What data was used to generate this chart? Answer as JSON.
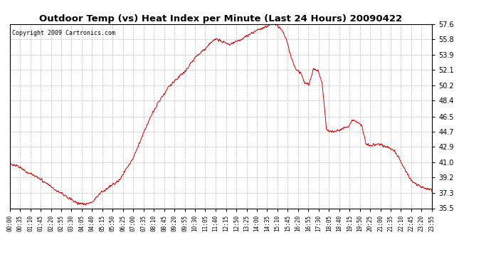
{
  "title": "Outdoor Temp (vs) Heat Index per Minute (Last 24 Hours) 20090422",
  "copyright": "Copyright 2009 Cartronics.com",
  "line_color": "#cc0000",
  "background_color": "#ffffff",
  "plot_bg_color": "#ffffff",
  "grid_color": "#aaaaaa",
  "yticks": [
    35.5,
    37.3,
    39.2,
    41.0,
    42.9,
    44.7,
    46.5,
    48.4,
    50.2,
    52.1,
    53.9,
    55.8,
    57.6
  ],
  "ylim": [
    35.5,
    57.6
  ],
  "xtick_labels": [
    "00:00",
    "00:35",
    "01:10",
    "01:45",
    "02:20",
    "02:55",
    "03:30",
    "04:05",
    "04:40",
    "05:15",
    "05:50",
    "06:25",
    "07:00",
    "07:35",
    "08:10",
    "08:45",
    "09:20",
    "09:55",
    "10:30",
    "11:05",
    "11:40",
    "12:15",
    "12:50",
    "13:25",
    "14:00",
    "14:35",
    "15:10",
    "15:45",
    "16:20",
    "16:55",
    "17:30",
    "18:05",
    "18:40",
    "19:15",
    "19:50",
    "20:25",
    "21:00",
    "21:35",
    "22:10",
    "22:45",
    "23:20",
    "23:55"
  ],
  "curve_keypoints": [
    [
      0.0,
      40.8
    ],
    [
      0.5,
      40.5
    ],
    [
      1.0,
      39.8
    ],
    [
      1.5,
      39.3
    ],
    [
      2.0,
      38.6
    ],
    [
      2.5,
      37.8
    ],
    [
      3.0,
      37.2
    ],
    [
      3.5,
      36.5
    ],
    [
      3.75,
      36.2
    ],
    [
      4.0,
      36.1
    ],
    [
      4.25,
      36.0
    ],
    [
      4.5,
      36.1
    ],
    [
      4.75,
      36.4
    ],
    [
      5.0,
      37.0
    ],
    [
      5.25,
      37.5
    ],
    [
      5.5,
      37.8
    ],
    [
      5.75,
      38.2
    ],
    [
      6.0,
      38.5
    ],
    [
      6.25,
      39.0
    ],
    [
      6.5,
      39.8
    ],
    [
      7.0,
      41.5
    ],
    [
      7.5,
      44.0
    ],
    [
      8.0,
      46.5
    ],
    [
      8.5,
      48.4
    ],
    [
      9.0,
      50.0
    ],
    [
      9.5,
      51.0
    ],
    [
      10.0,
      52.0
    ],
    [
      10.5,
      53.5
    ],
    [
      11.0,
      54.5
    ],
    [
      11.25,
      55.0
    ],
    [
      11.5,
      55.5
    ],
    [
      11.75,
      55.8
    ],
    [
      12.0,
      55.6
    ],
    [
      12.25,
      55.3
    ],
    [
      12.5,
      55.1
    ],
    [
      12.75,
      55.4
    ],
    [
      13.0,
      55.6
    ],
    [
      13.25,
      55.9
    ],
    [
      13.5,
      56.2
    ],
    [
      13.75,
      56.5
    ],
    [
      14.0,
      56.8
    ],
    [
      14.25,
      57.0
    ],
    [
      14.5,
      57.2
    ],
    [
      14.75,
      57.5
    ],
    [
      15.0,
      57.6
    ],
    [
      15.25,
      57.4
    ],
    [
      15.5,
      56.8
    ],
    [
      15.75,
      55.5
    ],
    [
      16.0,
      53.5
    ],
    [
      16.25,
      52.2
    ],
    [
      16.5,
      51.8
    ],
    [
      16.6,
      51.5
    ],
    [
      16.75,
      50.5
    ],
    [
      17.0,
      50.3
    ],
    [
      17.25,
      52.2
    ],
    [
      17.5,
      52.0
    ],
    [
      17.6,
      51.5
    ],
    [
      17.75,
      50.5
    ],
    [
      18.0,
      44.9
    ],
    [
      18.25,
      44.7
    ],
    [
      18.5,
      44.8
    ],
    [
      18.75,
      44.9
    ],
    [
      19.0,
      45.1
    ],
    [
      19.25,
      45.3
    ],
    [
      19.5,
      46.2
    ],
    [
      19.75,
      45.8
    ],
    [
      20.0,
      45.5
    ],
    [
      20.25,
      43.2
    ],
    [
      20.5,
      43.0
    ],
    [
      20.75,
      43.1
    ],
    [
      21.0,
      43.2
    ],
    [
      21.25,
      42.9
    ],
    [
      21.5,
      42.8
    ],
    [
      21.75,
      42.6
    ],
    [
      22.0,
      42.0
    ],
    [
      22.25,
      41.0
    ],
    [
      22.5,
      40.0
    ],
    [
      22.75,
      39.0
    ],
    [
      23.0,
      38.5
    ],
    [
      23.25,
      38.2
    ],
    [
      23.5,
      38.0
    ],
    [
      23.75,
      37.8
    ],
    [
      24.0,
      37.6
    ]
  ]
}
